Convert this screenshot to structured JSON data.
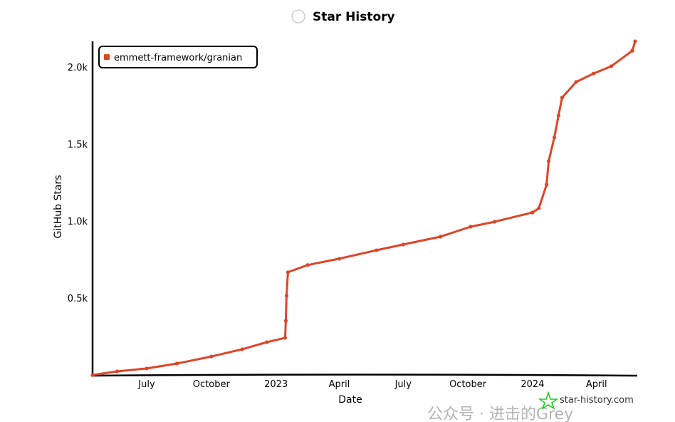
{
  "title": "Star History",
  "watermark": "公众号 · 进击的Grey",
  "credit": "star-history.com",
  "chart_data": {
    "type": "line",
    "title": "Star History",
    "xlabel": "Date",
    "ylabel": "GitHub Stars",
    "x_ticks": [
      {
        "label": "July",
        "date": "2022-07-01"
      },
      {
        "label": "October",
        "date": "2022-10-01"
      },
      {
        "label": "2023",
        "date": "2023-01-01"
      },
      {
        "label": "April",
        "date": "2023-04-01"
      },
      {
        "label": "July",
        "date": "2023-07-01"
      },
      {
        "label": "October",
        "date": "2023-10-01"
      },
      {
        "label": "2024",
        "date": "2024-01-01"
      },
      {
        "label": "April",
        "date": "2024-04-01"
      }
    ],
    "y_ticks": [
      {
        "label": "0.5k",
        "value": 500
      },
      {
        "label": "1.0k",
        "value": 1000
      },
      {
        "label": "1.5k",
        "value": 1500
      },
      {
        "label": "2.0k",
        "value": 2000
      }
    ],
    "xlim": [
      "2022-04-15",
      "2024-05-27"
    ],
    "ylim": [
      0,
      2200
    ],
    "grid": false,
    "legend": "top-left",
    "series": [
      {
        "name": "emmett-framework/granian",
        "color": "#dd4528",
        "points": [
          [
            "2022-04-15",
            0
          ],
          [
            "2022-05-20",
            23
          ],
          [
            "2022-07-01",
            42
          ],
          [
            "2022-08-13",
            74
          ],
          [
            "2022-10-01",
            120
          ],
          [
            "2022-11-14",
            167
          ],
          [
            "2022-12-19",
            213
          ],
          [
            "2023-01-14",
            241
          ],
          [
            "2023-01-15",
            352
          ],
          [
            "2023-01-16",
            514
          ],
          [
            "2023-01-18",
            667
          ],
          [
            "2023-02-15",
            714
          ],
          [
            "2023-04-01",
            755
          ],
          [
            "2023-05-24",
            810
          ],
          [
            "2023-07-01",
            847
          ],
          [
            "2023-08-23",
            898
          ],
          [
            "2023-10-05",
            963
          ],
          [
            "2023-11-08",
            995
          ],
          [
            "2024-01-01",
            1055
          ],
          [
            "2024-01-10",
            1083
          ],
          [
            "2024-01-21",
            1236
          ],
          [
            "2024-01-24",
            1389
          ],
          [
            "2024-02-01",
            1542
          ],
          [
            "2024-02-07",
            1685
          ],
          [
            "2024-02-12",
            1801
          ],
          [
            "2024-03-03",
            1903
          ],
          [
            "2024-03-28",
            1958
          ],
          [
            "2024-04-22",
            2005
          ],
          [
            "2024-05-22",
            2106
          ],
          [
            "2024-05-26",
            2167
          ]
        ]
      }
    ]
  }
}
